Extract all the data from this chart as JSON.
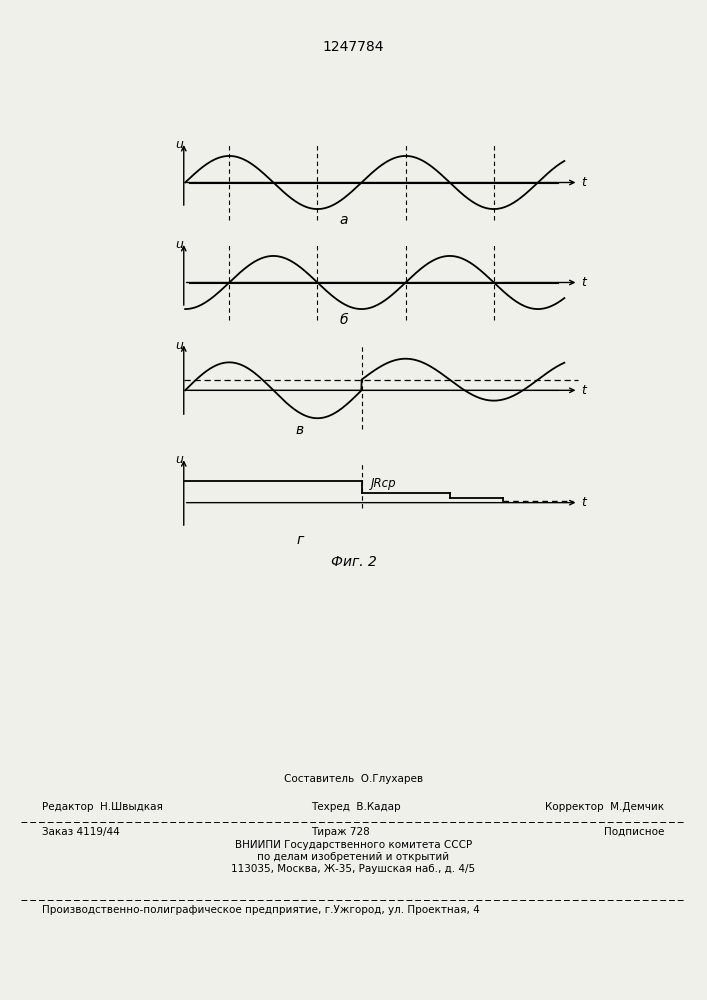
{
  "title": "1247784",
  "fig_caption": "Фиг. 2",
  "background_color": "#f0f0eb",
  "panel_labels": [
    "а",
    "б",
    "в",
    "г"
  ],
  "axis_label_u": "u",
  "axis_label_t": "t",
  "dashed_line_label": "JRср",
  "footer_line1_center_top": "Составитель  О.Глухарев",
  "footer_line1_left": "Редактор  Н.Швыдкая",
  "footer_line1_center": "Техред  В.Кадар",
  "footer_line1_right": "Корректор  М.Демчик",
  "footer_line2_left": "Заказ 4119/44",
  "footer_line2_center": "Тираж 728",
  "footer_line2_right": "Подписное",
  "footer_line3": "ВНИИПИ Государственного комитета СССР",
  "footer_line4": "по делам изобретений и открытий",
  "footer_line5": "113035, Москва, Ж-35, Раушская наб., д. 4/5",
  "footer_last": "Производственно-полиграфическое предприятие, г.Ужгород, ул. Проектная, 4"
}
